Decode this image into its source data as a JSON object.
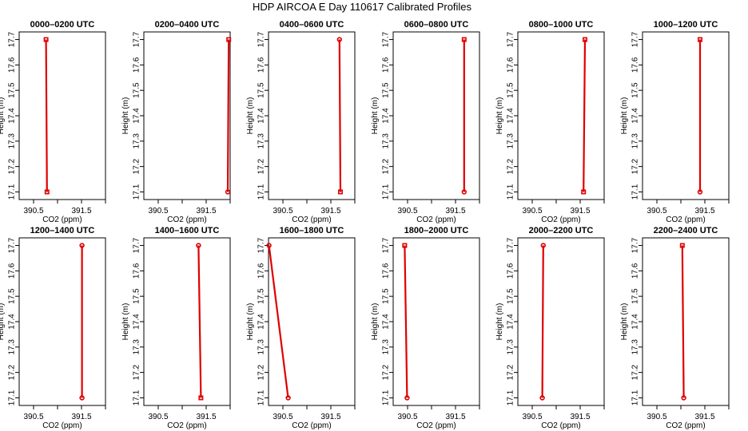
{
  "title": "HDP AIRCOA E  Day 110617  Calibrated Profiles",
  "chart_data": {
    "type": "line",
    "xlabel": "CO2 (ppm)",
    "ylabel": "Height (m)",
    "xlim": [
      390.2,
      392.0
    ],
    "ylim": [
      17.07,
      17.73
    ],
    "x_ticks": [
      390.5,
      391.5
    ],
    "x_minor_ticks": [
      390.5,
      391.0,
      391.5,
      392.0
    ],
    "y_ticks": [
      17.1,
      17.2,
      17.3,
      17.4,
      17.5,
      17.6,
      17.7
    ],
    "panels": [
      {
        "title": "0000–0200 UTC",
        "points": [
          [
            390.78,
            17.1
          ],
          [
            390.76,
            17.7
          ]
        ],
        "markers": [
          "square",
          "square"
        ]
      },
      {
        "title": "0200–0400 UTC",
        "points": [
          [
            391.95,
            17.1
          ],
          [
            391.97,
            17.7
          ]
        ],
        "markers": [
          "circle",
          "square"
        ]
      },
      {
        "title": "0400–0600 UTC",
        "points": [
          [
            391.7,
            17.1
          ],
          [
            391.68,
            17.7
          ]
        ],
        "markers": [
          "square",
          "circle"
        ]
      },
      {
        "title": "0600–0800 UTC",
        "points": [
          [
            391.68,
            17.1
          ],
          [
            391.68,
            17.7
          ]
        ],
        "markers": [
          "circle",
          "square"
        ]
      },
      {
        "title": "0800–1000 UTC",
        "points": [
          [
            391.57,
            17.1
          ],
          [
            391.6,
            17.7
          ]
        ],
        "markers": [
          "square",
          "square"
        ]
      },
      {
        "title": "1000–1200 UTC",
        "points": [
          [
            391.4,
            17.1
          ],
          [
            391.4,
            17.7
          ]
        ],
        "markers": [
          "circle",
          "square"
        ]
      },
      {
        "title": "1200–1400 UTC",
        "points": [
          [
            391.51,
            17.1
          ],
          [
            391.51,
            17.7
          ]
        ],
        "markers": [
          "circle",
          "circle"
        ]
      },
      {
        "title": "1400–1600 UTC",
        "points": [
          [
            391.39,
            17.1
          ],
          [
            391.34,
            17.7
          ]
        ],
        "markers": [
          "square",
          "circle"
        ]
      },
      {
        "title": "1600–1800 UTC",
        "points": [
          [
            390.61,
            17.1
          ],
          [
            390.21,
            17.7
          ]
        ],
        "markers": [
          "circle",
          "circle"
        ]
      },
      {
        "title": "1800–2000 UTC",
        "points": [
          [
            390.49,
            17.1
          ],
          [
            390.44,
            17.7
          ]
        ],
        "markers": [
          "circle",
          "square"
        ]
      },
      {
        "title": "2000–2200 UTC",
        "points": [
          [
            390.71,
            17.1
          ],
          [
            390.73,
            17.7
          ]
        ],
        "markers": [
          "circle",
          "circle"
        ]
      },
      {
        "title": "2200–2400 UTC",
        "points": [
          [
            391.06,
            17.1
          ],
          [
            391.03,
            17.7
          ]
        ],
        "markers": [
          "circle",
          "square"
        ]
      }
    ],
    "colors": {
      "series": "#e00000",
      "frame": "#000000"
    },
    "grid": false,
    "legend": "none"
  }
}
